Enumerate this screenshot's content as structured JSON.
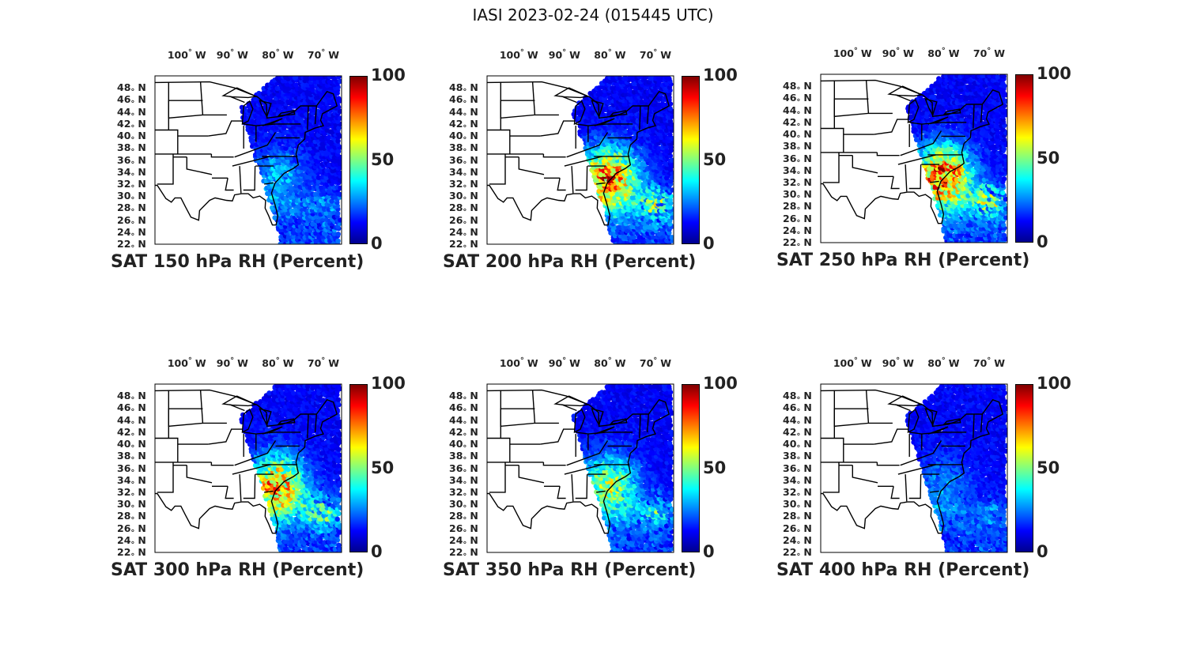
{
  "title": "IASI 2023-02-24 (015445 UTC)",
  "lon_ticks": [
    {
      "deg": "100",
      "dir": "W"
    },
    {
      "deg": "90",
      "dir": "W"
    },
    {
      "deg": "80",
      "dir": "W"
    },
    {
      "deg": "70",
      "dir": "W"
    }
  ],
  "lat_ticks": [
    {
      "deg": "48",
      "dir": "N"
    },
    {
      "deg": "46",
      "dir": "N"
    },
    {
      "deg": "44",
      "dir": "N"
    },
    {
      "deg": "42",
      "dir": "N"
    },
    {
      "deg": "40",
      "dir": "N"
    },
    {
      "deg": "38",
      "dir": "N"
    },
    {
      "deg": "36",
      "dir": "N"
    },
    {
      "deg": "34",
      "dir": "N"
    },
    {
      "deg": "32",
      "dir": "N"
    },
    {
      "deg": "30",
      "dir": "N"
    },
    {
      "deg": "28",
      "dir": "N"
    },
    {
      "deg": "26",
      "dir": "N"
    },
    {
      "deg": "24",
      "dir": "N"
    },
    {
      "deg": "22",
      "dir": "N"
    }
  ],
  "colorbar": {
    "ticks": [
      "100",
      "50",
      "0"
    ],
    "range": [
      0,
      100
    ],
    "colormap": [
      "#00008f",
      "#0000ff",
      "#0080ff",
      "#00ffff",
      "#80ff80",
      "#ffff00",
      "#ff8000",
      "#ff0000",
      "#800000"
    ]
  },
  "panels": [
    {
      "caption": "SAT 150 hPa RH (Percent)",
      "level": "150",
      "moisture": 0.15
    },
    {
      "caption": "SAT 200 hPa RH (Percent)",
      "level": "200",
      "moisture": 0.55
    },
    {
      "caption": "SAT 250 hPa RH (Percent)",
      "level": "250",
      "moisture": 0.6
    },
    {
      "caption": "SAT 300 hPa RH (Percent)",
      "level": "300",
      "moisture": 0.5
    },
    {
      "caption": "SAT 350 hPa RH (Percent)",
      "level": "350",
      "moisture": 0.35
    },
    {
      "caption": "SAT 400 hPa RH (Percent)",
      "level": "400",
      "moisture": 0.12
    }
  ]
}
